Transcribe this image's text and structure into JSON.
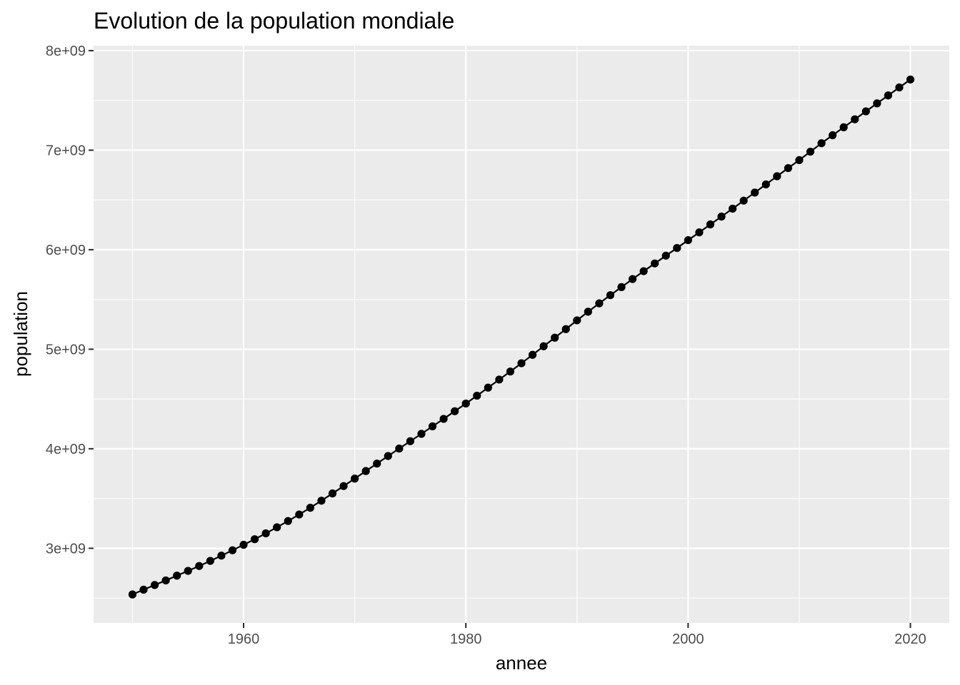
{
  "chart_data": {
    "type": "line",
    "title": "Evolution de la population mondiale",
    "xlabel": "annee",
    "ylabel": "population",
    "xlim": [
      1946.5,
      2023.5
    ],
    "ylim": [
      2250000000,
      8050000000
    ],
    "x_ticks": [
      1960,
      1980,
      2000,
      2020
    ],
    "x_tick_labels": [
      "1960",
      "1980",
      "2000",
      "2020"
    ],
    "y_ticks": [
      3000000000,
      4000000000,
      5000000000,
      6000000000,
      7000000000,
      8000000000
    ],
    "y_tick_labels": [
      "3e+09",
      "4e+09",
      "5e+09",
      "6e+09",
      "7e+09",
      "8e+09"
    ],
    "grid": true,
    "legend": "none",
    "points": true,
    "series": [
      {
        "color": "#000000",
        "x": [
          1950,
          1951,
          1952,
          1953,
          1954,
          1955,
          1956,
          1957,
          1958,
          1959,
          1960,
          1961,
          1962,
          1963,
          1964,
          1965,
          1966,
          1967,
          1968,
          1969,
          1970,
          1971,
          1972,
          1973,
          1974,
          1975,
          1976,
          1977,
          1978,
          1979,
          1980,
          1981,
          1982,
          1983,
          1984,
          1985,
          1986,
          1987,
          1988,
          1989,
          1990,
          1991,
          1992,
          1993,
          1994,
          1995,
          1996,
          1997,
          1998,
          1999,
          2000,
          2001,
          2002,
          2003,
          2004,
          2005,
          2006,
          2007,
          2008,
          2009,
          2010,
          2011,
          2012,
          2013,
          2014,
          2015,
          2016,
          2017,
          2018,
          2019,
          2020
        ],
        "y": [
          2536000000,
          2584000000,
          2631000000,
          2677000000,
          2725000000,
          2773000000,
          2822000000,
          2873000000,
          2926000000,
          2980000000,
          3035000000,
          3091000000,
          3150000000,
          3211000000,
          3274000000,
          3339000000,
          3407000000,
          3478000000,
          3551000000,
          3625000000,
          3700000000,
          3776000000,
          3851000000,
          3927000000,
          4002000000,
          4076000000,
          4150000000,
          4225000000,
          4300000000,
          4377000000,
          4454000000,
          4533000000,
          4614000000,
          4695000000,
          4776000000,
          4859000000,
          4944000000,
          5030000000,
          5116000000,
          5202000000,
          5290000000,
          5377000000,
          5461000000,
          5543000000,
          5624000000,
          5705000000,
          5784000000,
          5862000000,
          5940000000,
          6017000000,
          6096000000,
          6174000000,
          6254000000,
          6333000000,
          6412000000,
          6493000000,
          6574000000,
          6656000000,
          6738000000,
          6820000000,
          6900000000,
          6985000000,
          7070000000,
          7150000000,
          7230000000,
          7310000000,
          7390000000,
          7470000000,
          7550000000,
          7630000000,
          7710000000
        ]
      }
    ]
  }
}
